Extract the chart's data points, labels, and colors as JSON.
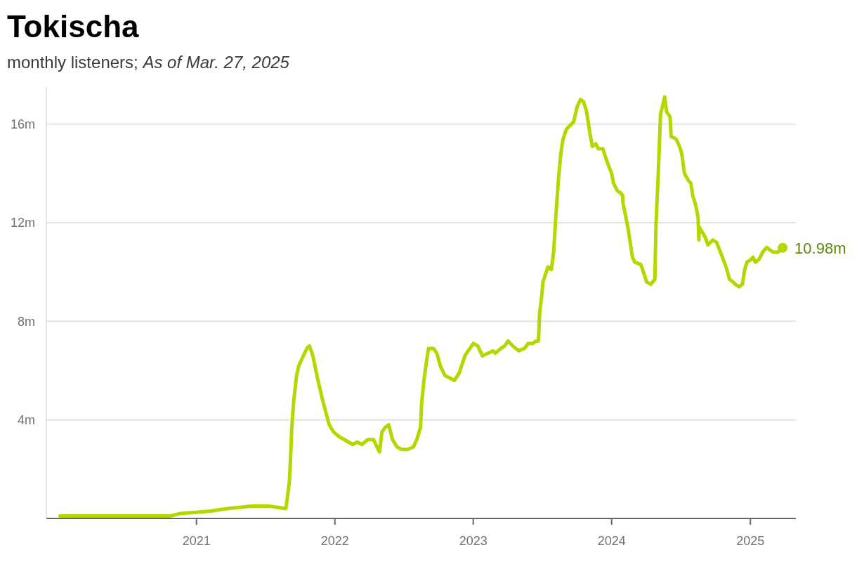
{
  "chart_data": {
    "type": "line",
    "title": "Tokischa",
    "subtitle": "monthly listeners; As of Mar. 27, 2025",
    "x": [
      "2020-01-07",
      "2020-05-19",
      "2020-10-23",
      "2020-11-20",
      "2021-02-08",
      "2021-03-23",
      "2021-05-25",
      "2021-06-03",
      "2021-07-12",
      "2021-08-25",
      "2021-09-03",
      "2021-09-06",
      "2021-09-09",
      "2021-09-14",
      "2021-09-22",
      "2021-09-28",
      "2021-10-07",
      "2021-10-19",
      "2021-10-26",
      "2021-11-04",
      "2021-11-16",
      "2021-11-28",
      "2021-12-17",
      "2021-12-29",
      "2022-01-14",
      "2022-01-26",
      "2022-02-17",
      "2022-03-01",
      "2022-03-13",
      "2022-03-29",
      "2022-04-13",
      "2022-04-22",
      "2022-04-29",
      "2022-05-05",
      "2022-05-14",
      "2022-05-23",
      "2022-06-02",
      "2022-06-14",
      "2022-06-26",
      "2022-07-12",
      "2022-07-27",
      "2022-08-05",
      "2022-08-15",
      "2022-08-18",
      "2022-08-24",
      "2022-08-30",
      "2022-09-05",
      "2022-09-18",
      "2022-09-27",
      "2022-10-06",
      "2022-10-18",
      "2022-10-31",
      "2022-11-12",
      "2022-11-25",
      "2022-12-10",
      "2023-01-01",
      "2023-01-13",
      "2023-01-25",
      "2023-02-22",
      "2023-02-28",
      "2023-03-15",
      "2023-03-25",
      "2023-04-03",
      "2023-04-15",
      "2023-05-01",
      "2023-05-16",
      "2023-05-26",
      "2023-06-07",
      "2023-06-16",
      "2023-06-22",
      "2023-06-25",
      "2023-07-01",
      "2023-07-04",
      "2023-07-17",
      "2023-07-26",
      "2023-08-01",
      "2023-08-07",
      "2023-08-14",
      "2023-08-20",
      "2023-08-26",
      "2023-09-04",
      "2023-09-17",
      "2023-09-23",
      "2023-10-02",
      "2023-10-11",
      "2023-10-19",
      "2023-10-27",
      "2023-11-05",
      "2023-11-11",
      "2023-11-20",
      "2023-11-27",
      "2023-12-09",
      "2023-12-15",
      "2023-12-24",
      "2024-01-01",
      "2024-01-06",
      "2024-01-16",
      "2024-01-25",
      "2024-01-30",
      "2024-01-31",
      "2024-02-13",
      "2024-02-25",
      "2024-03-02",
      "2024-03-18",
      "2024-03-27",
      "2024-04-02",
      "2024-04-13",
      "2024-04-24",
      "2024-04-27",
      "2024-05-03",
      "2024-05-09",
      "2024-05-20",
      "2024-05-25",
      "2024-06-03",
      "2024-06-06",
      "2024-06-19",
      "2024-06-28",
      "2024-07-04",
      "2024-07-11",
      "2024-07-22",
      "2024-07-28",
      "2024-08-02",
      "2024-08-10",
      "2024-08-16",
      "2024-08-18",
      "2024-08-20",
      "2024-08-28",
      "2024-09-04",
      "2024-09-11",
      "2024-09-24",
      "2024-10-04",
      "2024-10-19",
      "2024-10-29",
      "2024-11-07",
      "2024-11-16",
      "2024-11-22",
      "2024-12-02",
      "2024-12-11",
      "2024-12-17",
      "2024-12-23",
      "2025-01-02",
      "2025-01-08",
      "2025-01-14",
      "2025-01-23",
      "2025-01-30",
      "2025-02-02",
      "2025-02-13",
      "2025-02-21",
      "2025-03-03",
      "2025-03-14",
      "2025-03-27"
    ],
    "values": [
      0.1,
      0.1,
      0.1,
      0.2,
      0.3,
      0.4,
      0.5,
      0.5,
      0.5,
      0.4,
      1.5,
      2.4,
      3.6,
      4.7,
      5.8,
      6.2,
      6.5,
      6.9,
      7.0,
      6.6,
      5.7,
      4.9,
      3.8,
      3.5,
      3.3,
      3.2,
      3.0,
      3.1,
      3.0,
      3.2,
      3.2,
      2.9,
      2.7,
      3.5,
      3.7,
      3.8,
      3.2,
      2.9,
      2.8,
      2.8,
      2.9,
      3.2,
      3.7,
      4.7,
      5.6,
      6.3,
      6.9,
      6.9,
      6.7,
      6.2,
      5.8,
      5.7,
      5.6,
      5.9,
      6.6,
      7.1,
      7.0,
      6.6,
      6.8,
      6.7,
      6.9,
      7.0,
      7.2,
      7.0,
      6.8,
      6.9,
      7.1,
      7.1,
      7.2,
      7.2,
      8.3,
      9.1,
      9.6,
      10.2,
      10.1,
      10.8,
      12.3,
      13.8,
      14.8,
      15.4,
      15.8,
      16.0,
      16.1,
      16.7,
      17.0,
      16.9,
      16.5,
      15.6,
      15.1,
      15.2,
      15.0,
      15.0,
      14.7,
      14.3,
      14.0,
      13.6,
      13.3,
      13.2,
      13.1,
      12.8,
      11.8,
      10.6,
      10.4,
      10.3,
      9.9,
      9.6,
      9.5,
      9.7,
      11.9,
      14.0,
      16.4,
      17.1,
      16.5,
      16.3,
      15.5,
      15.4,
      15.1,
      14.8,
      14.0,
      13.7,
      13.6,
      13.1,
      12.7,
      12.2,
      11.3,
      11.8,
      11.6,
      11.4,
      11.1,
      11.3,
      11.2,
      10.6,
      10.2,
      9.7,
      9.6,
      9.5,
      9.4,
      9.5,
      10.1,
      10.4,
      10.5,
      10.6,
      10.4,
      10.5,
      10.7,
      10.8,
      11.0,
      10.9,
      10.8,
      10.8,
      10.98
    ],
    "color": "#b4d700",
    "xlim": [
      "2019-12-02",
      "2025-05-01"
    ],
    "xticks": [
      "2021",
      "2022",
      "2023",
      "2024",
      "2025"
    ],
    "ylim": [
      0,
      17.5
    ],
    "yticks": [
      {
        "value": 4,
        "label": "4m"
      },
      {
        "value": 8,
        "label": "8m"
      },
      {
        "value": 12,
        "label": "12m"
      },
      {
        "value": 16,
        "label": "16m"
      }
    ],
    "grid": "y",
    "annotations": [
      {
        "text": "10.98m",
        "x": "2025-03-27",
        "y": 10.98
      }
    ]
  }
}
